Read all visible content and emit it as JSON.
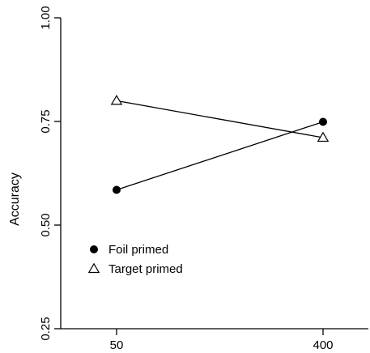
{
  "chart_data": {
    "type": "line",
    "x": [
      50,
      400
    ],
    "x_tick_labels": [
      "50",
      "400"
    ],
    "ylabel": "Accuracy",
    "ylim": [
      0.25,
      1.0
    ],
    "y_ticks": [
      0.25,
      0.5,
      0.75,
      1.0
    ],
    "y_tick_labels": [
      "0.25",
      "0.50",
      "0.75",
      "1.00"
    ],
    "series": [
      {
        "name": "Foil primed",
        "marker": "filled-circle",
        "values": [
          0.585,
          0.749
        ]
      },
      {
        "name": "Target primed",
        "marker": "open-triangle",
        "values": [
          0.8,
          0.711
        ]
      }
    ],
    "legend_position": "bottom-left",
    "grid": false
  }
}
